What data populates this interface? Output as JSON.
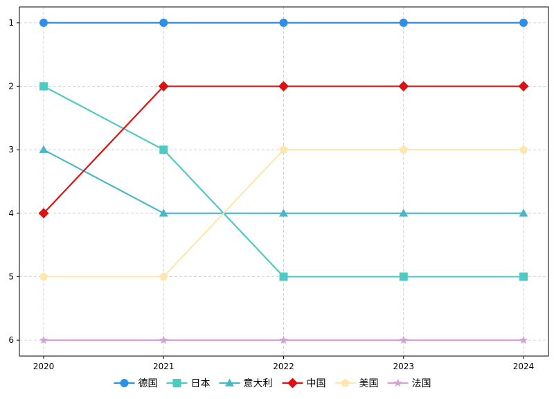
{
  "chart_data": {
    "type": "line",
    "title": "",
    "xlabel": "",
    "ylabel": "",
    "x": [
      "2020",
      "2021",
      "2022",
      "2023",
      "2024"
    ],
    "y_ticks": [
      1,
      2,
      3,
      4,
      5,
      6
    ],
    "ylim": [
      6.25,
      0.75
    ],
    "y_inverted": true,
    "grid": true,
    "legend_placement": "bottom-center",
    "series": [
      {
        "name": "德国",
        "values": [
          1,
          1,
          1,
          1,
          1
        ],
        "color": "#2E8FE8",
        "marker": "circle"
      },
      {
        "name": "日本",
        "values": [
          2,
          3,
          5,
          5,
          5
        ],
        "color": "#4FC9C3",
        "marker": "square"
      },
      {
        "name": "意大利",
        "values": [
          3,
          4,
          4,
          4,
          4
        ],
        "color": "#4AB6C9",
        "marker": "triangle"
      },
      {
        "name": "中国",
        "values": [
          4,
          2,
          2,
          2,
          2
        ],
        "color": "#DD1111",
        "marker": "diamond"
      },
      {
        "name": "美国",
        "values": [
          5,
          5,
          3,
          3,
          3
        ],
        "color": "#FCE8AE",
        "marker": "pentagon"
      },
      {
        "name": "法国",
        "values": [
          6,
          6,
          6,
          6,
          6
        ],
        "color": "#D4A2D8",
        "marker": "star"
      }
    ]
  }
}
